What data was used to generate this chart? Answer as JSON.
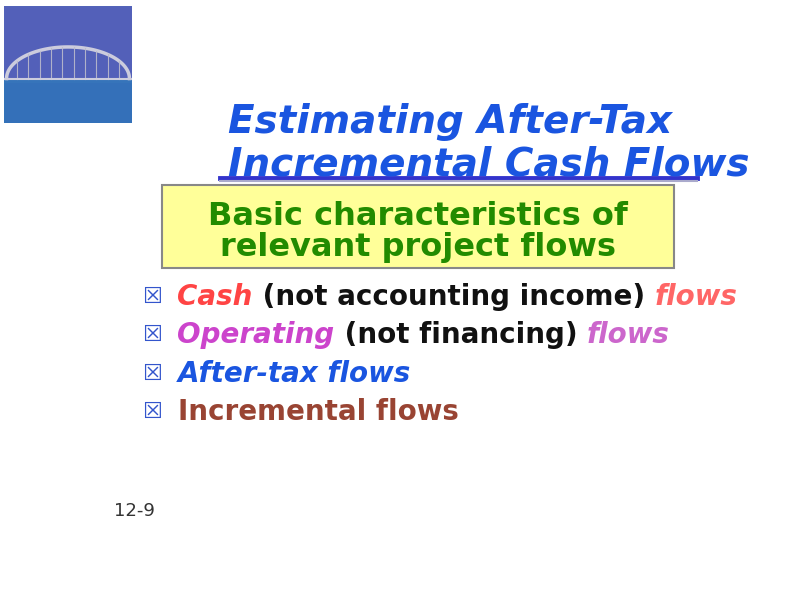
{
  "title_line1": "Estimating After-Tax",
  "title_line2": "Incremental Cash Flows",
  "title_color": "#1a55e0",
  "subtitle_box_text1": "Basic characteristics of",
  "subtitle_box_text2": "relevant project flows",
  "subtitle_text_color": "#228B00",
  "subtitle_box_color": "#FFFF99",
  "subtitle_box_edge_color": "#888888",
  "bullet_items": [
    {
      "parts": [
        {
          "text": "Cash",
          "color": "#FF4444",
          "bold": true,
          "italic": true
        },
        {
          "text": " (not accounting income) ",
          "color": "#111111",
          "bold": true,
          "italic": false
        },
        {
          "text": "flows",
          "color": "#FF6666",
          "bold": true,
          "italic": true
        }
      ]
    },
    {
      "parts": [
        {
          "text": "Operating",
          "color": "#CC44CC",
          "bold": true,
          "italic": true
        },
        {
          "text": " (not financing) ",
          "color": "#111111",
          "bold": true,
          "italic": false
        },
        {
          "text": "flows",
          "color": "#CC66CC",
          "bold": true,
          "italic": true
        }
      ]
    },
    {
      "parts": [
        {
          "text": "After-tax flows",
          "color": "#1a55e0",
          "bold": true,
          "italic": true
        }
      ]
    },
    {
      "parts": [
        {
          "text": "Incremental flows",
          "color": "#994433",
          "bold": true,
          "italic": false
        }
      ]
    }
  ],
  "page_label": "12-9",
  "background_color": "#FFFFFF",
  "hr_color": "#3333CC",
  "bullet_color": "#3355CC",
  "bullet_char": "☒"
}
